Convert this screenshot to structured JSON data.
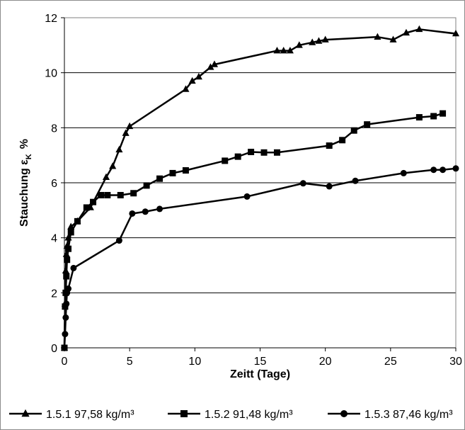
{
  "chart_data": {
    "type": "line",
    "xlabel": "Zeitt (Tage)",
    "ylabel_main": "Stauchung ε",
    "ylabel_sub": "K",
    "ylabel_unit": "%",
    "xlim": [
      0,
      30
    ],
    "ylim": [
      0,
      12
    ],
    "xticks": [
      0,
      5,
      10,
      15,
      20,
      25,
      30
    ],
    "yticks": [
      0,
      2,
      4,
      6,
      8,
      10,
      12
    ],
    "grid": "horizontal",
    "legend_position": "bottom",
    "series": [
      {
        "name": "1.5.1  97,58 kg/m³",
        "marker": "triangle",
        "color": "#000000",
        "x": [
          0,
          0.05,
          0.1,
          0.15,
          0.2,
          0.3,
          0.5,
          1.0,
          2.0,
          3.2,
          3.7,
          4.2,
          4.7,
          5.0,
          9.3,
          9.8,
          10.3,
          11.2,
          11.5,
          16.3,
          16.8,
          17.3,
          18.0,
          19.0,
          19.5,
          20.0,
          24.0,
          25.2,
          26.2,
          27.2,
          30.0
        ],
        "y": [
          0,
          1.6,
          2.8,
          3.4,
          3.7,
          4.0,
          4.4,
          4.6,
          5.1,
          6.2,
          6.6,
          7.2,
          7.8,
          8.05,
          9.4,
          9.7,
          9.85,
          10.2,
          10.3,
          10.8,
          10.8,
          10.8,
          11.0,
          11.1,
          11.15,
          11.2,
          11.3,
          11.2,
          11.45,
          11.58,
          11.42
        ]
      },
      {
        "name": "1.5.2  91,48 kg/m³",
        "marker": "square",
        "color": "#000000",
        "x": [
          0,
          0.05,
          0.1,
          0.15,
          0.2,
          0.3,
          0.5,
          1.0,
          1.7,
          2.2,
          2.8,
          3.3,
          4.3,
          5.3,
          6.3,
          7.3,
          8.3,
          9.3,
          12.3,
          13.3,
          14.3,
          15.3,
          16.3,
          20.3,
          21.3,
          22.2,
          23.2,
          27.2,
          28.3,
          29.0
        ],
        "y": [
          0,
          1.5,
          2.0,
          2.6,
          3.2,
          3.6,
          4.2,
          4.6,
          5.1,
          5.3,
          5.55,
          5.55,
          5.55,
          5.62,
          5.9,
          6.15,
          6.35,
          6.45,
          6.8,
          6.95,
          7.12,
          7.1,
          7.1,
          7.35,
          7.55,
          7.9,
          8.12,
          8.38,
          8.42,
          8.52
        ]
      },
      {
        "name": "1.5.3  87,46 kg/m³",
        "marker": "circle",
        "color": "#000000",
        "x": [
          0,
          0.05,
          0.1,
          0.15,
          0.2,
          0.3,
          0.7,
          4.2,
          5.2,
          6.2,
          7.3,
          14.0,
          18.3,
          20.3,
          22.3,
          26.0,
          28.3,
          29.0,
          30.0
        ],
        "y": [
          0,
          0.5,
          1.1,
          1.6,
          2.0,
          2.15,
          2.9,
          3.9,
          4.88,
          4.95,
          5.05,
          5.5,
          5.98,
          5.87,
          6.07,
          6.35,
          6.47,
          6.47,
          6.52
        ]
      }
    ]
  }
}
